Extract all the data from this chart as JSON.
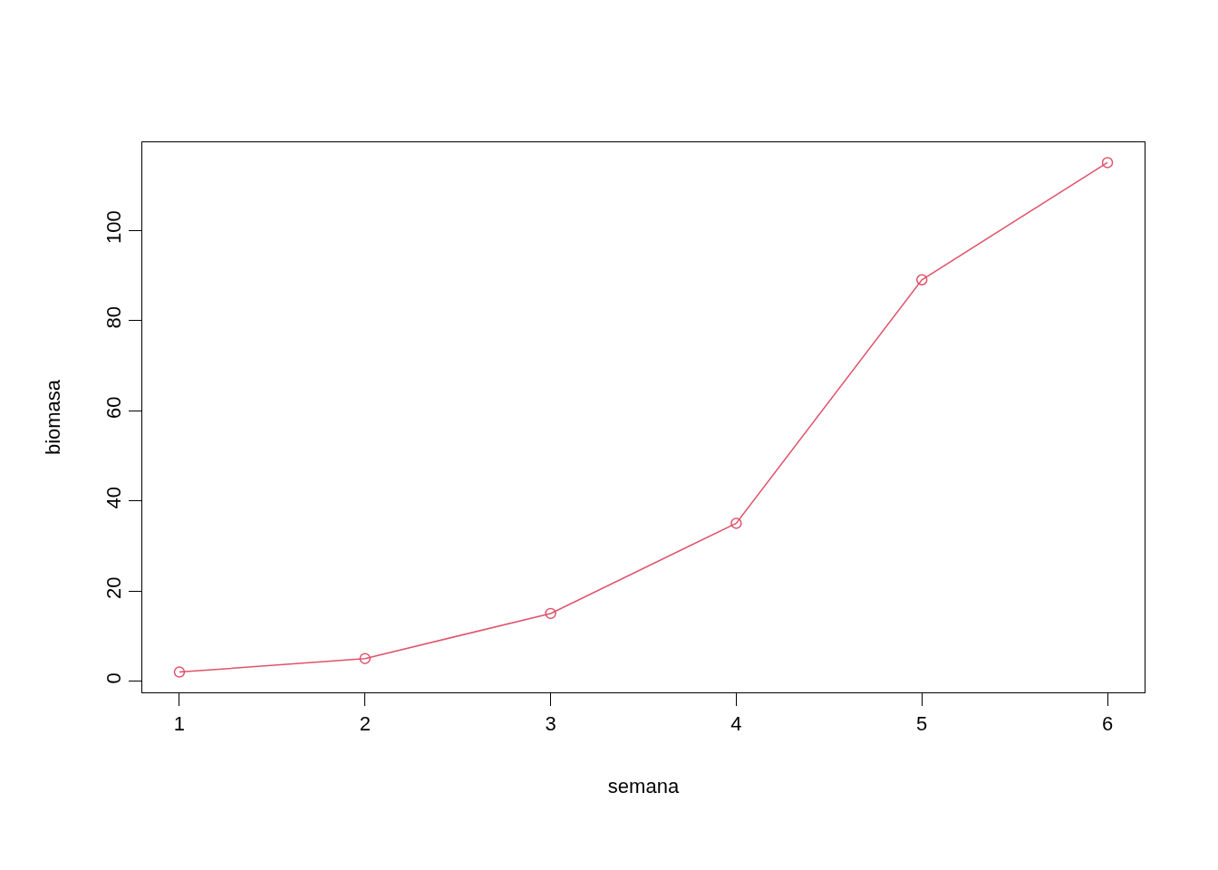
{
  "chart_data": {
    "type": "line",
    "xlabel": "semana",
    "ylabel": "biomasa",
    "x": [
      1,
      2,
      3,
      4,
      5,
      6
    ],
    "series": [
      {
        "color": "#df536b",
        "values": [
          2,
          5,
          15,
          35,
          89,
          115
        ]
      }
    ],
    "xlim": [
      0.8,
      6.2
    ],
    "xticks": [
      1,
      2,
      3,
      4,
      5,
      6
    ],
    "ylim": [
      -2.5,
      119.5
    ],
    "yticks": [
      0,
      20,
      40,
      60,
      80,
      100
    ],
    "marker": "circle",
    "line_style": "solid",
    "legend": false
  }
}
